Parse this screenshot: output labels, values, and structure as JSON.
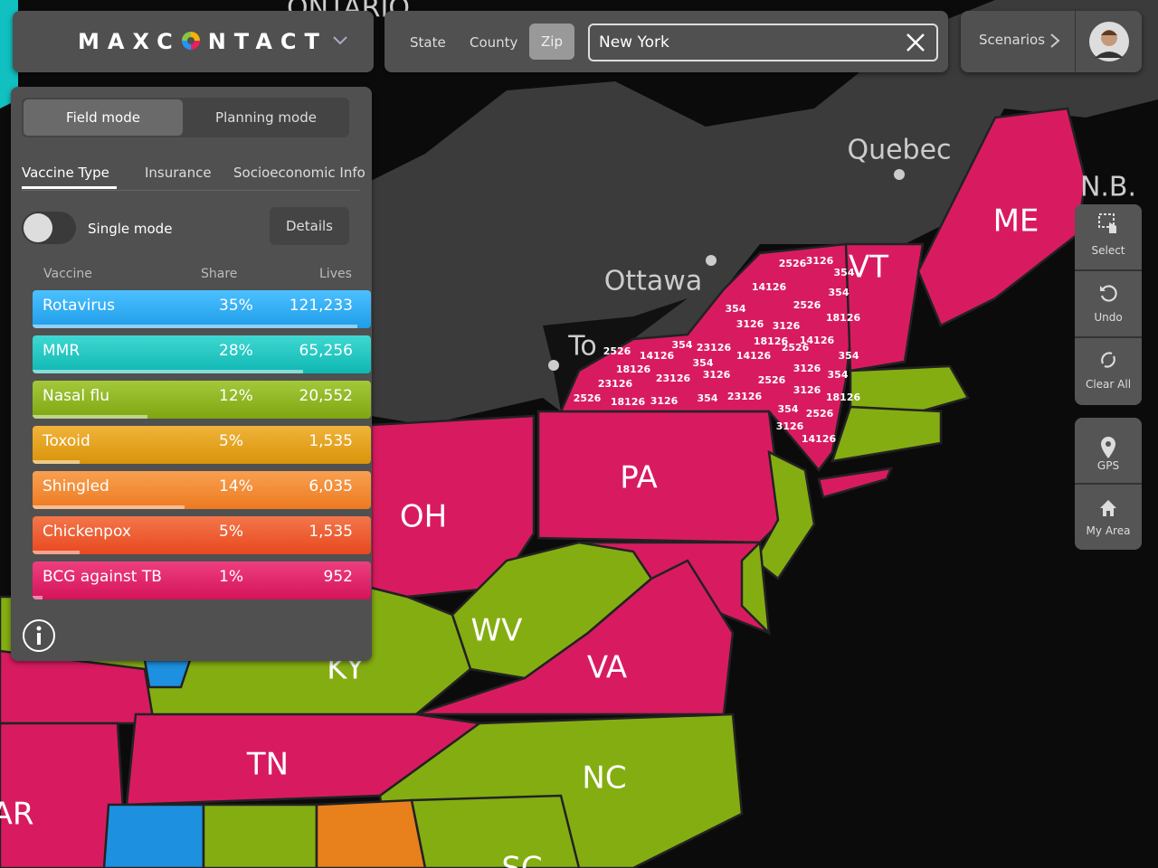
{
  "header": {
    "logo_left": "MAXC",
    "logo_right": "NTACT",
    "geo_levels": [
      "State",
      "County",
      "Zip"
    ],
    "search": "New York",
    "scenarios": "Scenarios"
  },
  "panel": {
    "modes": [
      "Field mode",
      "Planning mode"
    ],
    "tabs": [
      "Vaccine Type",
      "Insurance",
      "Socioeconomic Info"
    ],
    "toggle": "Single mode",
    "details": "Details",
    "table": {
      "columns": [
        "Vaccine",
        "Share",
        "Lives"
      ],
      "rows": [
        [
          "Rotavirus",
          "35%",
          "121,233"
        ],
        [
          "MMR",
          "28%",
          "65,256"
        ],
        [
          "Nasal flu",
          "12%",
          "20,552"
        ],
        [
          "Toxoid",
          "5%",
          "1,535"
        ],
        [
          "Shingled",
          "14%",
          "6,035"
        ],
        [
          "Chickenpox",
          "5%",
          "1,535"
        ],
        [
          "BCG against TB",
          "1%",
          "952"
        ]
      ]
    }
  },
  "map": {
    "labels": [
      "ONTARIO",
      "Quebec",
      "Ottawa",
      "To",
      "N.B.",
      "ME",
      "VT",
      "PA",
      "OH",
      "WV",
      "VA",
      "KY",
      "TN",
      "NC",
      "SC",
      "AR"
    ],
    "zip_labels": [
      "2526",
      "3126",
      "354",
      "14126",
      "354",
      "354",
      "2526",
      "18126",
      "3126",
      "3126",
      "354",
      "23126",
      "18126",
      "2526",
      "14126",
      "2526",
      "14126",
      "14126",
      "354",
      "354",
      "18126",
      "3126",
      "354",
      "23126",
      "3126",
      "23126",
      "2526",
      "3126",
      "2526",
      "18126",
      "3126",
      "354",
      "23126",
      "18126",
      "354",
      "2526",
      "3126",
      "14126"
    ]
  },
  "toolbar": {
    "tools": [
      "Select",
      "Undo",
      "Clear All"
    ],
    "nav": [
      "GPS",
      "My Area"
    ]
  }
}
